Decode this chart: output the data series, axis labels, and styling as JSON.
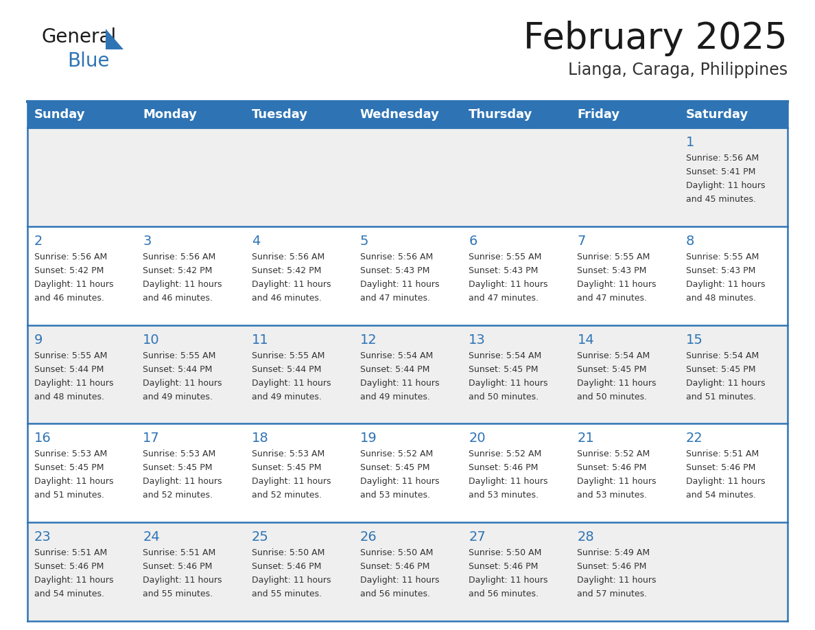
{
  "title": "February 2025",
  "subtitle": "Lianga, Caraga, Philippines",
  "days_of_week": [
    "Sunday",
    "Monday",
    "Tuesday",
    "Wednesday",
    "Thursday",
    "Friday",
    "Saturday"
  ],
  "header_bg": "#2E74B5",
  "header_text_color": "#FFFFFF",
  "row_bg_even": "#FFFFFF",
  "row_bg_odd": "#EFEFEF",
  "separator_color": "#2E74B5",
  "text_color": "#333333",
  "day_number_color": "#2E74B5",
  "title_color": "#1a1a1a",
  "subtitle_color": "#333333",
  "logo_general_color": "#1a1a1a",
  "logo_blue_color": "#2E74B5",
  "logo_triangle_color": "#2E74B5",
  "calendar_data": [
    [
      null,
      null,
      null,
      null,
      null,
      null,
      {
        "day": 1,
        "sunrise": "5:56 AM",
        "sunset": "5:41 PM",
        "daylight": "11 hours and 45 minutes."
      }
    ],
    [
      {
        "day": 2,
        "sunrise": "5:56 AM",
        "sunset": "5:42 PM",
        "daylight": "11 hours and 46 minutes."
      },
      {
        "day": 3,
        "sunrise": "5:56 AM",
        "sunset": "5:42 PM",
        "daylight": "11 hours and 46 minutes."
      },
      {
        "day": 4,
        "sunrise": "5:56 AM",
        "sunset": "5:42 PM",
        "daylight": "11 hours and 46 minutes."
      },
      {
        "day": 5,
        "sunrise": "5:56 AM",
        "sunset": "5:43 PM",
        "daylight": "11 hours and 47 minutes."
      },
      {
        "day": 6,
        "sunrise": "5:55 AM",
        "sunset": "5:43 PM",
        "daylight": "11 hours and 47 minutes."
      },
      {
        "day": 7,
        "sunrise": "5:55 AM",
        "sunset": "5:43 PM",
        "daylight": "11 hours and 47 minutes."
      },
      {
        "day": 8,
        "sunrise": "5:55 AM",
        "sunset": "5:43 PM",
        "daylight": "11 hours and 48 minutes."
      }
    ],
    [
      {
        "day": 9,
        "sunrise": "5:55 AM",
        "sunset": "5:44 PM",
        "daylight": "11 hours and 48 minutes."
      },
      {
        "day": 10,
        "sunrise": "5:55 AM",
        "sunset": "5:44 PM",
        "daylight": "11 hours and 49 minutes."
      },
      {
        "day": 11,
        "sunrise": "5:55 AM",
        "sunset": "5:44 PM",
        "daylight": "11 hours and 49 minutes."
      },
      {
        "day": 12,
        "sunrise": "5:54 AM",
        "sunset": "5:44 PM",
        "daylight": "11 hours and 49 minutes."
      },
      {
        "day": 13,
        "sunrise": "5:54 AM",
        "sunset": "5:45 PM",
        "daylight": "11 hours and 50 minutes."
      },
      {
        "day": 14,
        "sunrise": "5:54 AM",
        "sunset": "5:45 PM",
        "daylight": "11 hours and 50 minutes."
      },
      {
        "day": 15,
        "sunrise": "5:54 AM",
        "sunset": "5:45 PM",
        "daylight": "11 hours and 51 minutes."
      }
    ],
    [
      {
        "day": 16,
        "sunrise": "5:53 AM",
        "sunset": "5:45 PM",
        "daylight": "11 hours and 51 minutes."
      },
      {
        "day": 17,
        "sunrise": "5:53 AM",
        "sunset": "5:45 PM",
        "daylight": "11 hours and 52 minutes."
      },
      {
        "day": 18,
        "sunrise": "5:53 AM",
        "sunset": "5:45 PM",
        "daylight": "11 hours and 52 minutes."
      },
      {
        "day": 19,
        "sunrise": "5:52 AM",
        "sunset": "5:45 PM",
        "daylight": "11 hours and 53 minutes."
      },
      {
        "day": 20,
        "sunrise": "5:52 AM",
        "sunset": "5:46 PM",
        "daylight": "11 hours and 53 minutes."
      },
      {
        "day": 21,
        "sunrise": "5:52 AM",
        "sunset": "5:46 PM",
        "daylight": "11 hours and 53 minutes."
      },
      {
        "day": 22,
        "sunrise": "5:51 AM",
        "sunset": "5:46 PM",
        "daylight": "11 hours and 54 minutes."
      }
    ],
    [
      {
        "day": 23,
        "sunrise": "5:51 AM",
        "sunset": "5:46 PM",
        "daylight": "11 hours and 54 minutes."
      },
      {
        "day": 24,
        "sunrise": "5:51 AM",
        "sunset": "5:46 PM",
        "daylight": "11 hours and 55 minutes."
      },
      {
        "day": 25,
        "sunrise": "5:50 AM",
        "sunset": "5:46 PM",
        "daylight": "11 hours and 55 minutes."
      },
      {
        "day": 26,
        "sunrise": "5:50 AM",
        "sunset": "5:46 PM",
        "daylight": "11 hours and 56 minutes."
      },
      {
        "day": 27,
        "sunrise": "5:50 AM",
        "sunset": "5:46 PM",
        "daylight": "11 hours and 56 minutes."
      },
      {
        "day": 28,
        "sunrise": "5:49 AM",
        "sunset": "5:46 PM",
        "daylight": "11 hours and 57 minutes."
      },
      null
    ]
  ]
}
